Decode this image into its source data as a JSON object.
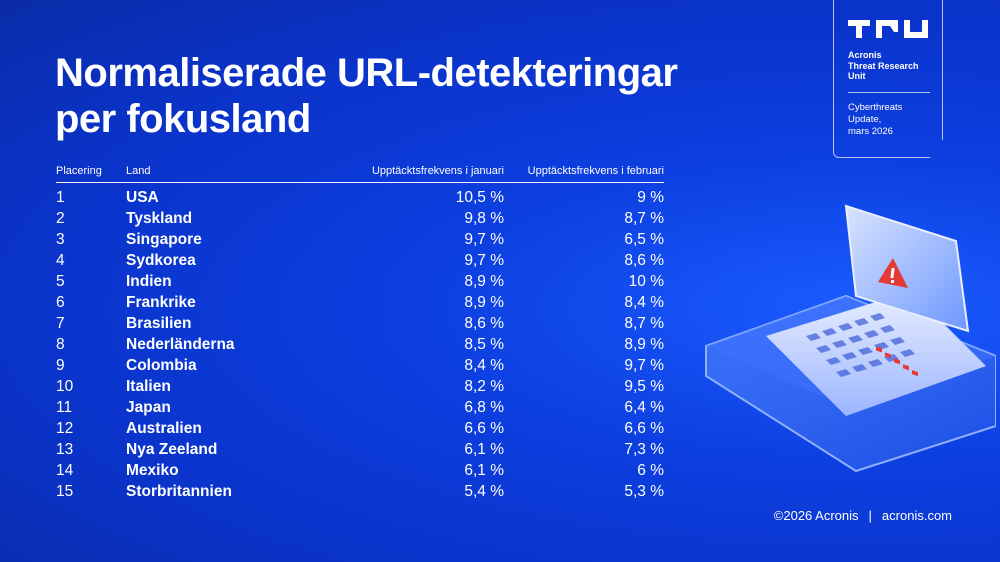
{
  "title": {
    "line1": "Normaliserade URL-detekteringar",
    "line2": "per fokusland"
  },
  "table": {
    "headers": {
      "rank": "Placering",
      "country": "Land",
      "january": "Upptäcktsfrekvens i januari",
      "february": "Upptäcktsfrekvens i februari"
    },
    "rows": [
      {
        "rank": "1",
        "country": "USA",
        "jan": "10,5 %",
        "feb": "9 %"
      },
      {
        "rank": "2",
        "country": "Tyskland",
        "jan": "9,8 %",
        "feb": "8,7 %"
      },
      {
        "rank": "3",
        "country": "Singapore",
        "jan": "9,7 %",
        "feb": "6,5 %"
      },
      {
        "rank": "4",
        "country": "Sydkorea",
        "jan": "9,7 %",
        "feb": "8,6 %"
      },
      {
        "rank": "5",
        "country": "Indien",
        "jan": "8,9 %",
        "feb": "10 %"
      },
      {
        "rank": "6",
        "country": "Frankrike",
        "jan": "8,9 %",
        "feb": "8,4 %"
      },
      {
        "rank": "7",
        "country": "Brasilien",
        "jan": "8,6 %",
        "feb": "8,7 %"
      },
      {
        "rank": "8",
        "country": "Nederländerna",
        "jan": "8,5 %",
        "feb": "8,9 %"
      },
      {
        "rank": "9",
        "country": "Colombia",
        "jan": "8,4 %",
        "feb": "9,7 %"
      },
      {
        "rank": "10",
        "country": "Italien",
        "jan": "8,2 %",
        "feb": "9,5 %"
      },
      {
        "rank": "11",
        "country": "Japan",
        "jan": "6,8 %",
        "feb": "6,4 %"
      },
      {
        "rank": "12",
        "country": "Australien",
        "jan": "6,6 %",
        "feb": "6,6 %"
      },
      {
        "rank": "13",
        "country": "Nya Zeeland",
        "jan": "6,1 %",
        "feb": "7,3 %"
      },
      {
        "rank": "14",
        "country": "Mexiko",
        "jan": "6,1 %",
        "feb": "6 %"
      },
      {
        "rank": "15",
        "country": "Storbritannien",
        "jan": "5,4 %",
        "feb": "5,3 %"
      }
    ]
  },
  "badge": {
    "org_line1": "Acronis",
    "org_line2": "Threat Research",
    "org_line3": "Unit",
    "update_line1": "Cyberthreats",
    "update_line2": "Update,",
    "update_line3": "mars 2026",
    "logo_icon": "tru-logo-icon"
  },
  "footer": {
    "copyright": "©2026 Acronis",
    "separator": "|",
    "website": "acronis.com"
  },
  "illustration": {
    "icon": "laptop-warning-icon"
  },
  "colors": {
    "background": "#0a33c9",
    "accent_red": "#e53935",
    "text": "#ffffff"
  }
}
